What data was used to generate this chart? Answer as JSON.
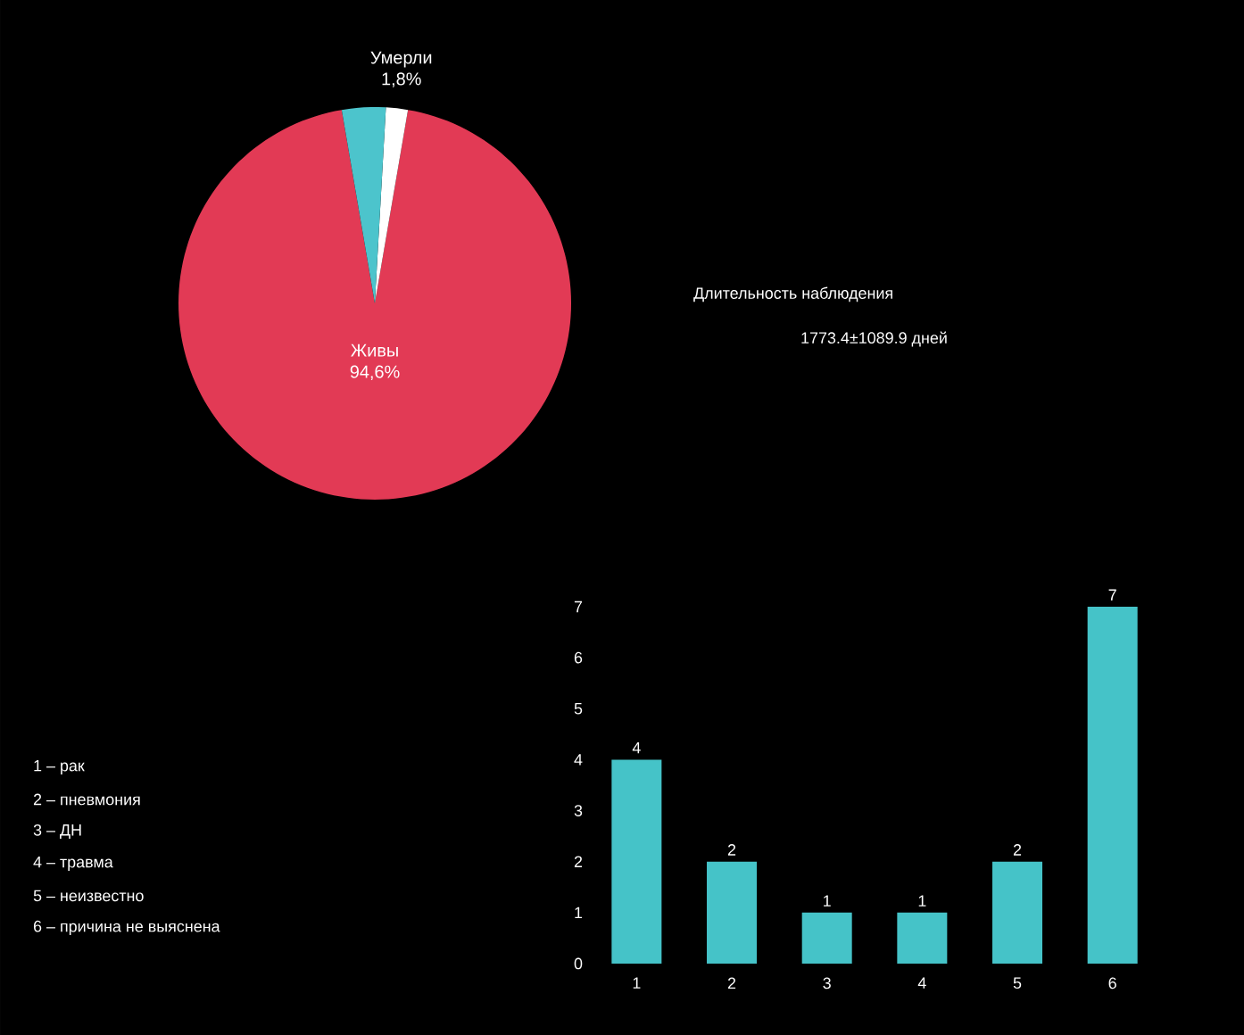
{
  "chart_data": [
    {
      "type": "pie",
      "categories": [
        "Живы",
        "Умерли",
        null
      ],
      "values": [
        94.6,
        1.8,
        3.6
      ],
      "colors": [
        "#e23a55",
        "#ffffff",
        "#4cc4cc"
      ],
      "value_labels": [
        "94,6%",
        "1,8%",
        null
      ],
      "annotations": [
        "Длительность наблюдения",
        "1773.4±1089.9 дней"
      ]
    },
    {
      "type": "bar",
      "categories": [
        "1",
        "2",
        "3",
        "4",
        "5",
        "6"
      ],
      "values": [
        4,
        2,
        1,
        1,
        2,
        7
      ],
      "color": "#45c3c8",
      "ylim": [
        0,
        7
      ],
      "yticks": [
        0,
        1,
        2,
        3,
        4,
        5,
        6,
        7
      ],
      "data_labels": true,
      "annotations": [
        "1 – рак",
        "2 – пневмония",
        "3 – ДН",
        "4 – травма",
        "5 – неизвестно",
        "6 – причина не выяснена"
      ]
    }
  ]
}
